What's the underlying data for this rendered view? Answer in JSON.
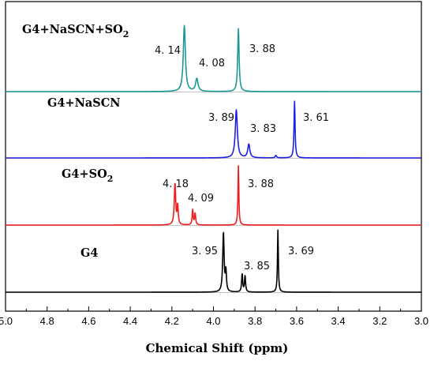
{
  "chart_data": {
    "type": "line",
    "title": "",
    "xlabel": "Chemical Shift (ppm)",
    "ylabel": "",
    "xlim": [
      5.0,
      3.0
    ],
    "x_reversed": true,
    "x_ticks": [
      "5.0",
      "4.8",
      "4.6",
      "4.4",
      "4.2",
      "4.0",
      "3.8",
      "3.6",
      "3.4",
      "3.2",
      "3.0"
    ],
    "grid": false,
    "legend": "none",
    "series": [
      {
        "name": "G4+NaSCN+SO",
        "name_subscript": "2",
        "color": "#1a9a93",
        "peaks": [
          {
            "ppm": 4.14,
            "label": "4. 14",
            "height": 0.88,
            "width": 0.006
          },
          {
            "ppm": 4.08,
            "label": "4. 08",
            "height": 0.17,
            "width": 0.007
          },
          {
            "ppm": 3.88,
            "label": "3. 88",
            "height": 0.84,
            "width": 0.004
          }
        ]
      },
      {
        "name": "G4+NaSCN",
        "name_subscript": "",
        "color": "#1d1ee8",
        "peaks": [
          {
            "ppm": 3.89,
            "label": "3. 89",
            "height": 0.78,
            "width": 0.006
          },
          {
            "ppm": 3.83,
            "label": "3. 83",
            "height": 0.22,
            "width": 0.006
          },
          {
            "ppm": 3.7,
            "label": "",
            "height": 0.04,
            "width": 0.004
          },
          {
            "ppm": 3.61,
            "label": "3. 61",
            "height": 0.92,
            "width": 0.003
          }
        ]
      },
      {
        "name": "G4+SO",
        "name_subscript": "2",
        "color": "#ee1c1c",
        "peaks": [
          {
            "ppm": 4.185,
            "label": "4. 18",
            "height": 0.66,
            "width": 0.004
          },
          {
            "ppm": 4.172,
            "label": "",
            "height": 0.3,
            "width": 0.003
          },
          {
            "ppm": 4.1,
            "label": "4. 09",
            "height": 0.24,
            "width": 0.003
          },
          {
            "ppm": 4.088,
            "label": "",
            "height": 0.18,
            "width": 0.003
          },
          {
            "ppm": 3.88,
            "label": "3. 88",
            "height": 0.94,
            "width": 0.0025
          }
        ]
      },
      {
        "name": "G4",
        "name_subscript": "",
        "color": "#000000",
        "peaks": [
          {
            "ppm": 3.952,
            "label": "3. 95",
            "height": 0.92,
            "width": 0.004
          },
          {
            "ppm": 3.94,
            "label": "",
            "height": 0.3,
            "width": 0.003
          },
          {
            "ppm": 3.862,
            "label": "3. 85",
            "height": 0.28,
            "width": 0.003
          },
          {
            "ppm": 3.848,
            "label": "",
            "height": 0.25,
            "width": 0.003
          },
          {
            "ppm": 3.69,
            "label": "3. 69",
            "height": 0.96,
            "width": 0.0025
          }
        ]
      }
    ]
  }
}
